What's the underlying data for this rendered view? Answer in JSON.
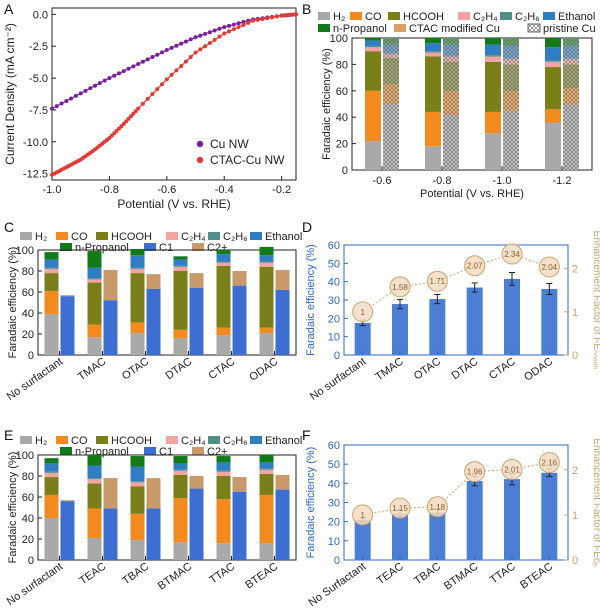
{
  "colors": {
    "H2": "#a9a9a9",
    "CO": "#f28a1e",
    "HCOOH": "#7a7f1a",
    "C2H4": "#f4a3a3",
    "C2H6": "#4f8f8a",
    "Ethanol": "#2f7dc2",
    "nPropanol": "#137a1a",
    "C1": "#3c6fd1",
    "C2plus": "#c89a6a",
    "barBlue": "#4a7fd4",
    "enh": "#c9a46e",
    "cu": "#7b1fa2",
    "ctac": "#e53935"
  },
  "chart_data": [
    {
      "panel": "A",
      "type": "line",
      "xlabel": "Potential (V vs. RHE)",
      "ylabel": "Current Density (mA cm⁻²)",
      "xlim": [
        -1.0,
        -0.15
      ],
      "ylim": [
        -13,
        0.5
      ],
      "xticks": [
        "-1.0",
        "-0.8",
        "-0.6",
        "-0.4",
        "-0.2"
      ],
      "yticks": [
        "0.0",
        "-2.5",
        "-5.0",
        "-7.5",
        "-10.0",
        "-12.5"
      ],
      "legend": "bottom-right",
      "series": [
        {
          "name": "Cu NW",
          "x": [
            -1.0,
            -0.9,
            -0.8,
            -0.7,
            -0.6,
            -0.5,
            -0.4,
            -0.3,
            -0.2,
            -0.15
          ],
          "y": [
            -7.4,
            -6.2,
            -5.0,
            -3.9,
            -2.8,
            -1.8,
            -1.0,
            -0.4,
            -0.1,
            0.0
          ]
        },
        {
          "name": "CTAC-Cu NW",
          "x": [
            -1.0,
            -0.95,
            -0.9,
            -0.85,
            -0.8,
            -0.75,
            -0.7,
            -0.6,
            -0.5,
            -0.4,
            -0.3,
            -0.2,
            -0.15
          ],
          "y": [
            -12.6,
            -12.0,
            -11.4,
            -10.6,
            -9.7,
            -8.6,
            -7.4,
            -5.1,
            -3.0,
            -1.5,
            -0.5,
            -0.1,
            0.0
          ]
        }
      ]
    },
    {
      "panel": "B",
      "type": "bar",
      "xlabel": "Potential (V vs. RHE)",
      "ylabel": "Faradaic efficiency (%)",
      "ylim": [
        0,
        100
      ],
      "yticks": [
        "0",
        "20",
        "40",
        "60",
        "80",
        "100"
      ],
      "categories": [
        "-0.6",
        "-0.8",
        "-1.0",
        "-1.2"
      ],
      "legend": [
        "H₂",
        "CO",
        "HCOOH",
        "C₂H₄",
        "C₂H₆",
        "Ethanol",
        "n-Propanol",
        "CTAC modified Cu",
        "pristine Cu"
      ],
      "stack_keys": [
        "H2",
        "CO",
        "HCOOH",
        "C2H4",
        "C2H6",
        "Ethanol",
        "nPropanol"
      ],
      "series_modified": [
        [
          22,
          38,
          30,
          3,
          1,
          4,
          2
        ],
        [
          18,
          26,
          42,
          3,
          1,
          6,
          4
        ],
        [
          28,
          16,
          38,
          4,
          1,
          8,
          5
        ],
        [
          36,
          10,
          32,
          4,
          1,
          10,
          7
        ]
      ],
      "series_pristine": [
        [
          50,
          15,
          20,
          3,
          1,
          6,
          5
        ],
        [
          42,
          18,
          22,
          4,
          1,
          8,
          5
        ],
        [
          45,
          15,
          20,
          4,
          1,
          9,
          6
        ],
        [
          50,
          12,
          18,
          4,
          1,
          9,
          6
        ]
      ]
    },
    {
      "panel": "C",
      "type": "bar",
      "ylabel": "Faradaic efficiency (%)",
      "ylim": [
        0,
        100
      ],
      "yticks": [
        "0",
        "20",
        "40",
        "60",
        "80",
        "100"
      ],
      "categories": [
        "No surfactant",
        "TMAC",
        "OTAC",
        "DTAC",
        "CTAC",
        "ODAC"
      ],
      "legend": [
        "H₂",
        "CO",
        "HCOOH",
        "C₂H₄",
        "C₂H₆",
        "Ethanol",
        "n-Propanol",
        "C1",
        "C2+"
      ],
      "stack_keys": [
        "H2",
        "CO",
        "HCOOH",
        "C2H4",
        "C2H6",
        "Ethanol",
        "nPropanol"
      ],
      "stacks": [
        [
          39,
          22,
          17,
          4,
          1,
          8,
          7
        ],
        [
          17,
          12,
          40,
          3,
          1,
          10,
          16
        ],
        [
          21,
          10,
          47,
          4,
          1,
          12,
          6
        ],
        [
          16,
          8,
          56,
          4,
          1,
          6,
          3
        ],
        [
          19,
          7,
          59,
          3,
          1,
          7,
          4
        ],
        [
          21,
          5,
          58,
          4,
          1,
          6,
          8
        ]
      ],
      "c1": [
        56,
        52,
        63,
        64,
        66,
        62
      ],
      "c2plus": [
        57,
        81,
        77,
        78,
        80,
        81
      ]
    },
    {
      "panel": "D",
      "type": "bar",
      "ylabel": "Faradaic efficiency (%)",
      "y2label": "Enhancement Factor of FEₕₒₒₒₕ",
      "ylim": [
        0,
        60
      ],
      "y2lim": [
        0,
        2.55
      ],
      "yticks": [
        "0",
        "10",
        "20",
        "30",
        "40",
        "50",
        "60"
      ],
      "y2ticks": [
        "0",
        "1",
        "2"
      ],
      "categories": [
        "No surfactant",
        "TMAC",
        "OTAC",
        "DTAC",
        "CTAC",
        "ODAC"
      ],
      "values": [
        17.5,
        27.8,
        30.5,
        36.8,
        41.5,
        36.0
      ],
      "errors": [
        1.5,
        2.5,
        2.5,
        2.5,
        3.5,
        3.0
      ],
      "enhancement": [
        1,
        1.58,
        1.71,
        2.07,
        2.34,
        2.04
      ],
      "enhancement_labels": [
        "1",
        "1.58",
        "1.71",
        "2.07",
        "2.34",
        "2.04"
      ]
    },
    {
      "panel": "E",
      "type": "bar",
      "ylabel": "Faradaic efficiency (%)",
      "ylim": [
        0,
        100
      ],
      "yticks": [
        "0",
        "20",
        "40",
        "60",
        "80",
        "100"
      ],
      "categories": [
        "No surfactant",
        "TEAC",
        "TBAC",
        "BTMAC",
        "TTAC",
        "BTEAC"
      ],
      "legend": [
        "H₂",
        "CO",
        "HCOOH",
        "C₂H₄",
        "C₂H₆",
        "Ethanol",
        "n-Propanol",
        "C1",
        "C2+"
      ],
      "stack_keys": [
        "H2",
        "CO",
        "HCOOH",
        "C2H4",
        "C2H6",
        "Ethanol",
        "nPropanol"
      ],
      "stacks": [
        [
          40,
          22,
          17,
          4,
          1,
          8,
          5
        ],
        [
          21,
          28,
          24,
          4,
          1,
          12,
          10
        ],
        [
          19,
          25,
          26,
          4,
          1,
          14,
          10
        ],
        [
          17,
          42,
          22,
          4,
          1,
          6,
          7
        ],
        [
          16,
          42,
          22,
          4,
          1,
          8,
          6
        ],
        [
          16,
          46,
          20,
          4,
          1,
          6,
          7
        ]
      ],
      "c1": [
        56,
        49,
        49,
        68,
        65,
        67
      ],
      "c2plus": [
        57,
        78,
        78,
        80,
        79,
        81
      ]
    },
    {
      "panel": "F",
      "type": "bar",
      "ylabel": "Faradaic efficiency (%)",
      "y2label": "Enhancement Factor of FEᴄₒ",
      "ylim": [
        0,
        60
      ],
      "y2lim": [
        0,
        2.55
      ],
      "yticks": [
        "0",
        "10",
        "20",
        "30",
        "40",
        "50",
        "60"
      ],
      "y2ticks": [
        "0",
        "1",
        "2"
      ],
      "categories": [
        "No Surfactant",
        "TEAC",
        "TBAC",
        "BTMAC",
        "TTAC",
        "BTEAC"
      ],
      "values": [
        21.0,
        24.2,
        24.8,
        41.2,
        42.2,
        45.5
      ],
      "errors": [
        1.0,
        2.0,
        2.0,
        2.5,
        3.0,
        2.0
      ],
      "enhancement": [
        1,
        1.15,
        1.18,
        1.96,
        2.01,
        2.16
      ],
      "enhancement_labels": [
        "1",
        "1.15",
        "1.18",
        "1.96",
        "2.01",
        "2.16"
      ]
    }
  ]
}
